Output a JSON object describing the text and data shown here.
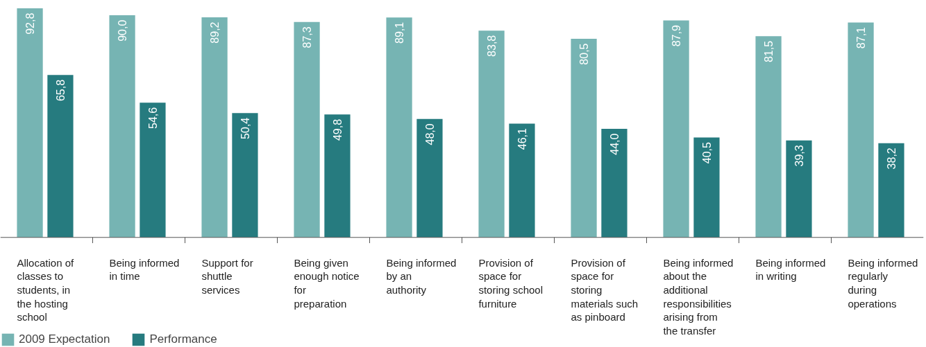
{
  "chart_data": {
    "type": "bar",
    "categories": [
      "Allocation of classes to students, in the hosting school",
      "Being informed in time",
      "Support for shuttle services",
      "Being given enough notice for preparation",
      "Being informed by an authority",
      "Provision of space for storing school furniture",
      "Provision of space for storing materials such as pinboard",
      "Being informed about the additional responsibilities arising from the transfer",
      "Being informed in writing",
      "Being informed regularly during operations"
    ],
    "series": [
      {
        "name": "2009 Expectation",
        "color": "#76b4b3",
        "values": [
          92.8,
          90.0,
          89.2,
          87.3,
          89.1,
          83.8,
          80.5,
          87.9,
          81.5,
          87.1
        ],
        "value_labels": [
          "92,8",
          "90,0",
          "89,2",
          "87,3",
          "89,1",
          "83,8",
          "80,5",
          "87,9",
          "81,5",
          "87,1"
        ]
      },
      {
        "name": "Performance",
        "color": "#267b7f",
        "values": [
          65.8,
          54.6,
          50.4,
          49.8,
          48.0,
          46.1,
          44.0,
          40.5,
          39.3,
          38.2
        ],
        "value_labels": [
          "65,8",
          "54,6",
          "50,4",
          "49,8",
          "48,0",
          "46,1",
          "44,0",
          "40,5",
          "39,3",
          "38,2"
        ]
      }
    ],
    "grid": false,
    "legend": "bottom left"
  }
}
